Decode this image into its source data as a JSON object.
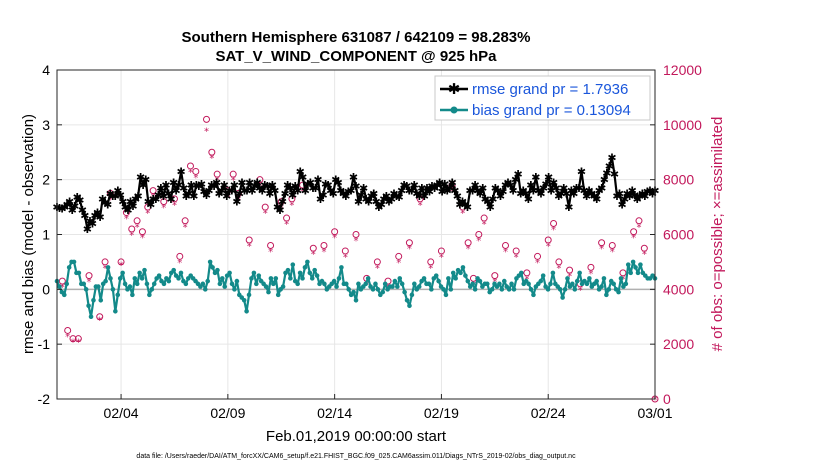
{
  "chart_data": {
    "type": "line",
    "title_line1": "Southern Hemisphere 631087 / 642109 = 98.283%",
    "title_line2": "SAT_V_WIND_COMPONENT @ 925 hPa",
    "ylabel_left": "rmse and bias (model - observation)",
    "ylabel_right": "# of obs: o=possible; ×=assimilated",
    "xlabel": "Feb.01,2019 00:00:00 start",
    "footer": "data file: /Users/raeder/DAI/ATM_forcXX/CAM6_setup/f.e21.FHIST_BGC.f09_025.CAM6assim.011/Diags_NTrS_2019-02/obs_diag_output.nc",
    "ylim_left": [
      -2,
      4
    ],
    "ylim_right": [
      0,
      12000
    ],
    "xlim_days": [
      0,
      28
    ],
    "yticks_left": [
      "-2",
      "-1",
      "0",
      "1",
      "2",
      "3",
      "4"
    ],
    "yticks_right": [
      "0",
      "2000",
      "4000",
      "6000",
      "8000",
      "10000",
      "12000"
    ],
    "xticks": [
      {
        "day": 3,
        "label": "02/04"
      },
      {
        "day": 8,
        "label": "02/09"
      },
      {
        "day": 13,
        "label": "02/14"
      },
      {
        "day": 18,
        "label": "02/19"
      },
      {
        "day": 23,
        "label": "02/24"
      },
      {
        "day": 28,
        "label": "03/01"
      }
    ],
    "series": [
      {
        "name": "rmse",
        "label": "rmse grand pr = 1.7936",
        "color": "#000000",
        "values": [
          1.5,
          1.48,
          1.47,
          1.5,
          1.55,
          1.6,
          1.45,
          1.52,
          1.68,
          1.63,
          1.45,
          1.35,
          1.1,
          1.25,
          1.2,
          1.35,
          1.4,
          1.32,
          1.65,
          1.58,
          1.55,
          1.75,
          1.7,
          1.7,
          1.8,
          1.72,
          1.6,
          1.5,
          1.45,
          1.6,
          1.52,
          1.65,
          1.7,
          2.05,
          1.9,
          2.0,
          1.6,
          1.55,
          1.65,
          1.65,
          1.72,
          1.85,
          1.7,
          1.9,
          1.75,
          1.65,
          1.95,
          1.8,
          1.9,
          2.15,
          1.85,
          1.7,
          1.75,
          1.9,
          1.7,
          1.9,
          1.88,
          1.92,
          1.78,
          1.72,
          1.8,
          1.9,
          1.88,
          1.95,
          1.75,
          1.8,
          1.9,
          1.7,
          1.8,
          1.8,
          1.9,
          1.6,
          1.75,
          1.95,
          1.8,
          1.8,
          1.95,
          1.8,
          1.88,
          1.95,
          1.85,
          1.8,
          1.9,
          1.88,
          1.75,
          1.9,
          1.8,
          1.5,
          1.45,
          1.6,
          1.75,
          1.9,
          1.85,
          1.72,
          1.88,
          1.8,
          2.15,
          2.05,
          1.8,
          1.92,
          1.95,
          1.85,
          1.85,
          2.0,
          1.65,
          1.72,
          1.92,
          1.9,
          1.8,
          1.75,
          2.0,
          1.95,
          1.8,
          1.75,
          1.7,
          1.78,
          1.8,
          2.05,
          1.88,
          1.6,
          1.72,
          1.85,
          1.65,
          1.6,
          1.7,
          1.75,
          1.6,
          1.5,
          1.55,
          1.65,
          1.7,
          1.6,
          1.65,
          1.75,
          1.7,
          1.68,
          1.8,
          1.9,
          1.88,
          1.8,
          1.8,
          1.9,
          1.75,
          1.7,
          1.85,
          1.7,
          1.85,
          1.78,
          1.88,
          1.85,
          1.9,
          1.95,
          1.78,
          1.92,
          1.8,
          1.85,
          1.95,
          1.8,
          1.7,
          1.55,
          1.6,
          1.55,
          1.5,
          1.8,
          1.8,
          1.9,
          1.8,
          1.75,
          1.85,
          1.65,
          1.6,
          1.5,
          1.65,
          1.85,
          1.8,
          1.7,
          1.78,
          1.9,
          1.95,
          1.9,
          1.8,
          2.0,
          2.1,
          1.75,
          1.8,
          1.75,
          1.65,
          1.9,
          1.8,
          2.05,
          1.8,
          1.75,
          1.85,
          1.92,
          2.05,
          1.8,
          1.95,
          1.85,
          1.7,
          1.75,
          1.85,
          1.75,
          1.5,
          1.8,
          1.75,
          1.85,
          1.85,
          2.15,
          1.8,
          1.7,
          1.8,
          1.75,
          1.7,
          1.65,
          1.8,
          1.85,
          2.0,
          2.12,
          2.25,
          2.4,
          2.1,
          1.7,
          1.75,
          1.55,
          1.65,
          1.75,
          1.7,
          1.8,
          1.72,
          1.65,
          1.7,
          1.75,
          1.7,
          1.78,
          1.8,
          1.75,
          1.8
        ]
      },
      {
        "name": "bias",
        "label": "bias grand pr = 0.13094",
        "color": "#138a8a",
        "values": [
          0.15,
          0.05,
          -0.05,
          -0.1,
          0.1,
          0.4,
          0.5,
          0.5,
          0.3,
          0.3,
          0.1,
          0.1,
          0.0,
          -0.3,
          -0.5,
          -0.2,
          0.05,
          0.05,
          -0.2,
          0.1,
          0.15,
          0.4,
          0.2,
          0.0,
          -0.4,
          -0.1,
          0.2,
          0.3,
          0.1,
          0.0,
          0.05,
          -0.1,
          0.2,
          0.1,
          0.3,
          0.2,
          0.35,
          0.1,
          -0.1,
          0.0,
          0.1,
          0.2,
          0.25,
          0.15,
          0.1,
          0.2,
          0.15,
          0.3,
          0.35,
          0.25,
          0.2,
          0.3,
          0.15,
          0.1,
          0.2,
          0.25,
          0.2,
          0.15,
          0.1,
          0.05,
          0.1,
          0.0,
          0.15,
          0.5,
          0.4,
          0.3,
          0.35,
          0.1,
          0.2,
          0.05,
          0.25,
          0.3,
          0.1,
          0.0,
          0.15,
          -0.1,
          -0.15,
          -0.2,
          -0.4,
          -0.1,
          0.2,
          0.3,
          0.1,
          0.25,
          0.15,
          0.1,
          0.05,
          -0.05,
          0.2,
          0.1,
          0.2,
          -0.1,
          0.0,
          0.05,
          0.3,
          0.35,
          0.2,
          0.45,
          0.15,
          0.1,
          0.3,
          0.2,
          0.4,
          0.5,
          0.3,
          0.2,
          0.35,
          0.25,
          0.1,
          0.15,
          0.1,
          0.0,
          0.05,
          0.1,
          0.15,
          0.05,
          0.2,
          0.4,
          0.1,
          0.1,
          0.0,
          -0.1,
          -0.05,
          -0.2,
          0.1,
          0.0,
          0.05,
          0.1,
          0.2,
          0.05,
          0.0,
          0.1,
          0.0,
          -0.1,
          -0.05,
          0.1,
          0.0,
          0.05,
          0.05,
          0.15,
          0.05,
          0.2,
          0.1,
          -0.05,
          -0.2,
          -0.3,
          -0.1,
          0.1,
          0.0,
          0.05,
          0.15,
          0.2,
          0.1,
          0.1,
          0.0,
          0.2,
          0.25,
          0.15,
          0.05,
          0.0,
          -0.1,
          0.2,
          0.0,
          0.3,
          0.2,
          0.35,
          0.3,
          0.4,
          0.25,
          0.15,
          0.05,
          0.1,
          0.0,
          0.2,
          0.15,
          0.05,
          0.1,
          0.1,
          -0.05,
          0.0,
          0.1,
          0.05,
          0.1,
          0.0,
          0.15,
          0.05,
          0.0,
          0.1,
          0.0,
          0.2,
          0.25,
          0.3,
          0.1,
          0.15,
          0.1,
          0.0,
          -0.1,
          0.05,
          0.1,
          0.15,
          0.25,
          0.05,
          0.0,
          0.1,
          0.3,
          0.1,
          0.05,
          0.0,
          -0.15,
          0.0,
          0.2,
          0.05,
          0.1,
          0.0,
          0.15,
          0.3,
          0.1,
          0.15,
          0.1,
          0.2,
          0.05,
          0.1,
          0.15,
          0.0,
          0.05,
          0.2,
          -0.1,
          0.0,
          0.15,
          0.1,
          0.0,
          -0.05,
          0.2,
          0.05,
          0.1,
          0.45,
          0.3,
          0.5,
          0.4,
          0.3,
          0.45,
          0.3,
          0.25,
          0.2,
          0.2,
          0.25,
          0.2
        ]
      },
      {
        "name": "obs_possible",
        "label": "possible",
        "color": "#c2185b",
        "axis": "right",
        "points": [
          [
            0.25,
            4300
          ],
          [
            0.5,
            2500
          ],
          [
            0.75,
            2200
          ],
          [
            1.0,
            2200
          ],
          [
            1.5,
            4500
          ],
          [
            2.0,
            3000
          ],
          [
            2.25,
            5000
          ],
          [
            2.5,
            7500
          ],
          [
            3.0,
            5000
          ],
          [
            3.25,
            6800
          ],
          [
            3.5,
            6200
          ],
          [
            3.75,
            6500
          ],
          [
            4.0,
            6100
          ],
          [
            4.25,
            7000
          ],
          [
            4.5,
            7600
          ],
          [
            5.0,
            7200
          ],
          [
            5.5,
            7300
          ],
          [
            5.75,
            5200
          ],
          [
            6.0,
            6500
          ],
          [
            6.25,
            8500
          ],
          [
            6.5,
            8300
          ],
          [
            7.0,
            10200
          ],
          [
            7.25,
            9000
          ],
          [
            7.5,
            8200
          ],
          [
            8.0,
            7600
          ],
          [
            8.25,
            8200
          ],
          [
            8.5,
            7500
          ],
          [
            9.0,
            5800
          ],
          [
            9.5,
            8000
          ],
          [
            9.75,
            7000
          ],
          [
            10.0,
            5600
          ],
          [
            10.5,
            7200
          ],
          [
            10.75,
            6600
          ],
          [
            11.0,
            7300
          ],
          [
            11.5,
            7800
          ],
          [
            12.0,
            5500
          ],
          [
            12.5,
            5600
          ],
          [
            13.0,
            6100
          ],
          [
            13.5,
            5400
          ],
          [
            14.0,
            6000
          ],
          [
            14.5,
            4400
          ],
          [
            15.0,
            5000
          ],
          [
            15.5,
            4300
          ],
          [
            16.0,
            5200
          ],
          [
            16.5,
            5700
          ],
          [
            17.0,
            7300
          ],
          [
            17.5,
            5000
          ],
          [
            18.0,
            5400
          ],
          [
            18.5,
            7800
          ],
          [
            19.0,
            7000
          ],
          [
            19.25,
            5700
          ],
          [
            19.5,
            4400
          ],
          [
            19.75,
            6000
          ],
          [
            20.0,
            6600
          ],
          [
            20.5,
            4500
          ],
          [
            21.0,
            5600
          ],
          [
            21.5,
            5400
          ],
          [
            22.0,
            4600
          ],
          [
            22.5,
            5200
          ],
          [
            23.0,
            5800
          ],
          [
            23.25,
            6400
          ],
          [
            23.5,
            5000
          ],
          [
            24.0,
            4700
          ],
          [
            24.5,
            4200
          ],
          [
            25.0,
            4800
          ],
          [
            25.5,
            5700
          ],
          [
            26.0,
            5600
          ],
          [
            26.5,
            4600
          ],
          [
            27.0,
            6100
          ],
          [
            27.25,
            6500
          ],
          [
            27.5,
            5500
          ],
          [
            28.0,
            0
          ]
        ]
      },
      {
        "name": "obs_assimilated",
        "label": "assimilated",
        "color": "#c2185b",
        "axis": "right",
        "points": [
          [
            0.25,
            4100
          ],
          [
            0.5,
            2300
          ],
          [
            0.75,
            2100
          ],
          [
            1.0,
            2100
          ],
          [
            1.5,
            4300
          ],
          [
            2.0,
            2900
          ],
          [
            2.25,
            4800
          ],
          [
            2.5,
            7300
          ],
          [
            3.0,
            4900
          ],
          [
            3.25,
            6600
          ],
          [
            3.5,
            6000
          ],
          [
            3.75,
            6300
          ],
          [
            4.0,
            5900
          ],
          [
            4.25,
            6800
          ],
          [
            4.5,
            7400
          ],
          [
            5.0,
            7000
          ],
          [
            5.5,
            7100
          ],
          [
            5.75,
            5000
          ],
          [
            6.0,
            6300
          ],
          [
            6.25,
            8300
          ],
          [
            6.5,
            8100
          ],
          [
            7.0,
            9800
          ],
          [
            7.25,
            8800
          ],
          [
            7.5,
            8000
          ],
          [
            8.0,
            7400
          ],
          [
            8.25,
            8000
          ],
          [
            8.5,
            7300
          ],
          [
            9.0,
            5600
          ],
          [
            9.5,
            7800
          ],
          [
            9.75,
            6800
          ],
          [
            10.0,
            5400
          ],
          [
            10.5,
            7000
          ],
          [
            10.75,
            6400
          ],
          [
            11.0,
            7100
          ],
          [
            11.5,
            7600
          ],
          [
            12.0,
            5300
          ],
          [
            12.5,
            5400
          ],
          [
            13.0,
            5900
          ],
          [
            13.5,
            5200
          ],
          [
            14.0,
            5800
          ],
          [
            14.5,
            4200
          ],
          [
            15.0,
            4800
          ],
          [
            15.5,
            4100
          ],
          [
            16.0,
            5000
          ],
          [
            16.5,
            5500
          ],
          [
            17.0,
            7100
          ],
          [
            17.5,
            4800
          ],
          [
            18.0,
            5200
          ],
          [
            18.5,
            7600
          ],
          [
            19.0,
            6800
          ],
          [
            19.25,
            5500
          ],
          [
            19.5,
            4200
          ],
          [
            19.75,
            5800
          ],
          [
            20.0,
            6400
          ],
          [
            20.5,
            4300
          ],
          [
            21.0,
            5400
          ],
          [
            21.5,
            5200
          ],
          [
            22.0,
            4400
          ],
          [
            22.5,
            5000
          ],
          [
            23.0,
            5600
          ],
          [
            23.25,
            6200
          ],
          [
            23.5,
            4800
          ],
          [
            24.0,
            4500
          ],
          [
            24.5,
            4000
          ],
          [
            25.0,
            4600
          ],
          [
            25.5,
            5500
          ],
          [
            26.0,
            5400
          ],
          [
            26.5,
            4400
          ],
          [
            27.0,
            5900
          ],
          [
            27.25,
            6300
          ],
          [
            27.5,
            5300
          ],
          [
            28.0,
            0
          ]
        ]
      }
    ],
    "grid": true,
    "legend_position": "top-right"
  }
}
